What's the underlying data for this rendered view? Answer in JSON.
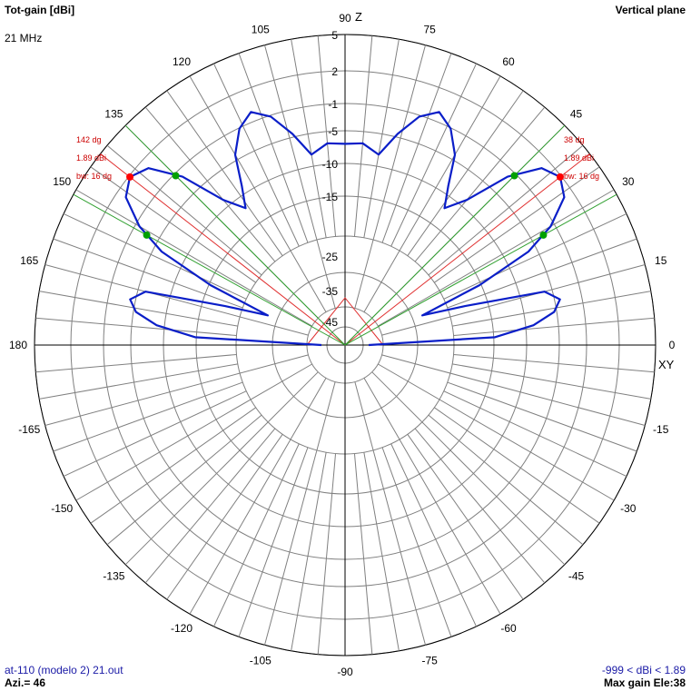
{
  "header": {
    "title": "Tot-gain [dBi]",
    "plane": "Vertical plane",
    "frequency": "21 MHz"
  },
  "footer": {
    "file": "at-110 (modelo 2) 21.out",
    "azimuth": "Azi.= 46",
    "range": "-999 < dBi < 1.89",
    "max_gain": "Max gain Ele:38"
  },
  "chart_data": {
    "type": "polar",
    "title": "Tot-gain [dBi]",
    "axis_labels": {
      "z": "Z",
      "xy": "XY"
    },
    "angle_tick_labels": [
      "0",
      "15",
      "30",
      "45",
      "60",
      "75",
      "90",
      "105",
      "120",
      "135",
      "150",
      "165",
      "180",
      "-165",
      "-150",
      "-135",
      "-120",
      "-105",
      "-90",
      "-75",
      "-60",
      "-45",
      "-30",
      "-15"
    ],
    "radial_tick_labels": [
      "5",
      "2",
      "-1",
      "-5",
      "-10",
      "-15",
      "-25",
      "-35",
      "-45"
    ],
    "grid": true,
    "series": [
      {
        "color": "#0a1ec8",
        "points": [
          {
            "angle": 0,
            "gain": -45
          },
          {
            "angle": 3,
            "gain": -14.8
          },
          {
            "angle": 6,
            "gain": -8.8
          },
          {
            "angle": 9,
            "gain": -5.4
          },
          {
            "angle": 12,
            "gain": -4.2
          },
          {
            "angle": 15,
            "gain": -6.2
          },
          {
            "angle": 18,
            "gain": -18.8
          },
          {
            "angle": 21,
            "gain": -26.8
          },
          {
            "angle": 24,
            "gain": -15.3
          },
          {
            "angle": 27,
            "gain": -6.3
          },
          {
            "angle": 30,
            "gain": -1.6
          },
          {
            "angle": 34,
            "gain": 1.1
          },
          {
            "angle": 38,
            "gain": 1.89
          },
          {
            "angle": 42,
            "gain": 1.1
          },
          {
            "angle": 46,
            "gain": -2.1
          },
          {
            "angle": 50,
            "gain": -8.8
          },
          {
            "angle": 54,
            "gain": -11.9
          },
          {
            "angle": 57,
            "gain": -8.8
          },
          {
            "angle": 60,
            "gain": -4.2
          },
          {
            "angle": 64,
            "gain": -1.1
          },
          {
            "angle": 68,
            "gain": -0.1
          },
          {
            "angle": 72,
            "gain": -1.2
          },
          {
            "angle": 76,
            "gain": -4.5
          },
          {
            "angle": 80,
            "gain": -8.2
          },
          {
            "angle": 85,
            "gain": -6.8
          },
          {
            "angle": 90,
            "gain": -7.0
          },
          {
            "angle": 95,
            "gain": -6.8
          },
          {
            "angle": 100,
            "gain": -8.2
          },
          {
            "angle": 104,
            "gain": -4.5
          },
          {
            "angle": 108,
            "gain": -1.2
          },
          {
            "angle": 112,
            "gain": -0.1
          },
          {
            "angle": 116,
            "gain": -1.1
          },
          {
            "angle": 120,
            "gain": -4.2
          },
          {
            "angle": 123,
            "gain": -8.8
          },
          {
            "angle": 126,
            "gain": -11.9
          },
          {
            "angle": 130,
            "gain": -8.8
          },
          {
            "angle": 134,
            "gain": -2.1
          },
          {
            "angle": 138,
            "gain": 1.1
          },
          {
            "angle": 142,
            "gain": 1.89
          },
          {
            "angle": 146,
            "gain": 1.1
          },
          {
            "angle": 150,
            "gain": -1.6
          },
          {
            "angle": 153,
            "gain": -6.3
          },
          {
            "angle": 156,
            "gain": -15.3
          },
          {
            "angle": 159,
            "gain": -26.8
          },
          {
            "angle": 162,
            "gain": -18.8
          },
          {
            "angle": 165,
            "gain": -6.2
          },
          {
            "angle": 168,
            "gain": -4.2
          },
          {
            "angle": 171,
            "gain": -5.4
          },
          {
            "angle": 174,
            "gain": -8.8
          },
          {
            "angle": 177,
            "gain": -14.8
          },
          {
            "angle": 180,
            "gain": -45
          }
        ]
      }
    ],
    "lobes": [
      {
        "max_angle": 142,
        "max_gain": 1.89,
        "half_power_angles": [
          135,
          151
        ],
        "label_angle": "142 dg",
        "label_gain": "1.89 dBi",
        "label_bw": "bw: 16 dg"
      },
      {
        "max_angle": 38,
        "max_gain": 1.89,
        "half_power_angles": [
          29,
          45
        ],
        "label_angle": "38 dg",
        "label_gain": "1.89 dBi",
        "label_bw": "bw: 16 dg"
      }
    ],
    "colors": {
      "grid": "#808080",
      "axes": "#000000",
      "pattern": "#0a1ec8",
      "max_marker": "#ff0000",
      "half_power_marker": "#00a000",
      "max_line": "#e03030",
      "half_power_line": "#30a030",
      "annotation": "#cc0000"
    }
  }
}
